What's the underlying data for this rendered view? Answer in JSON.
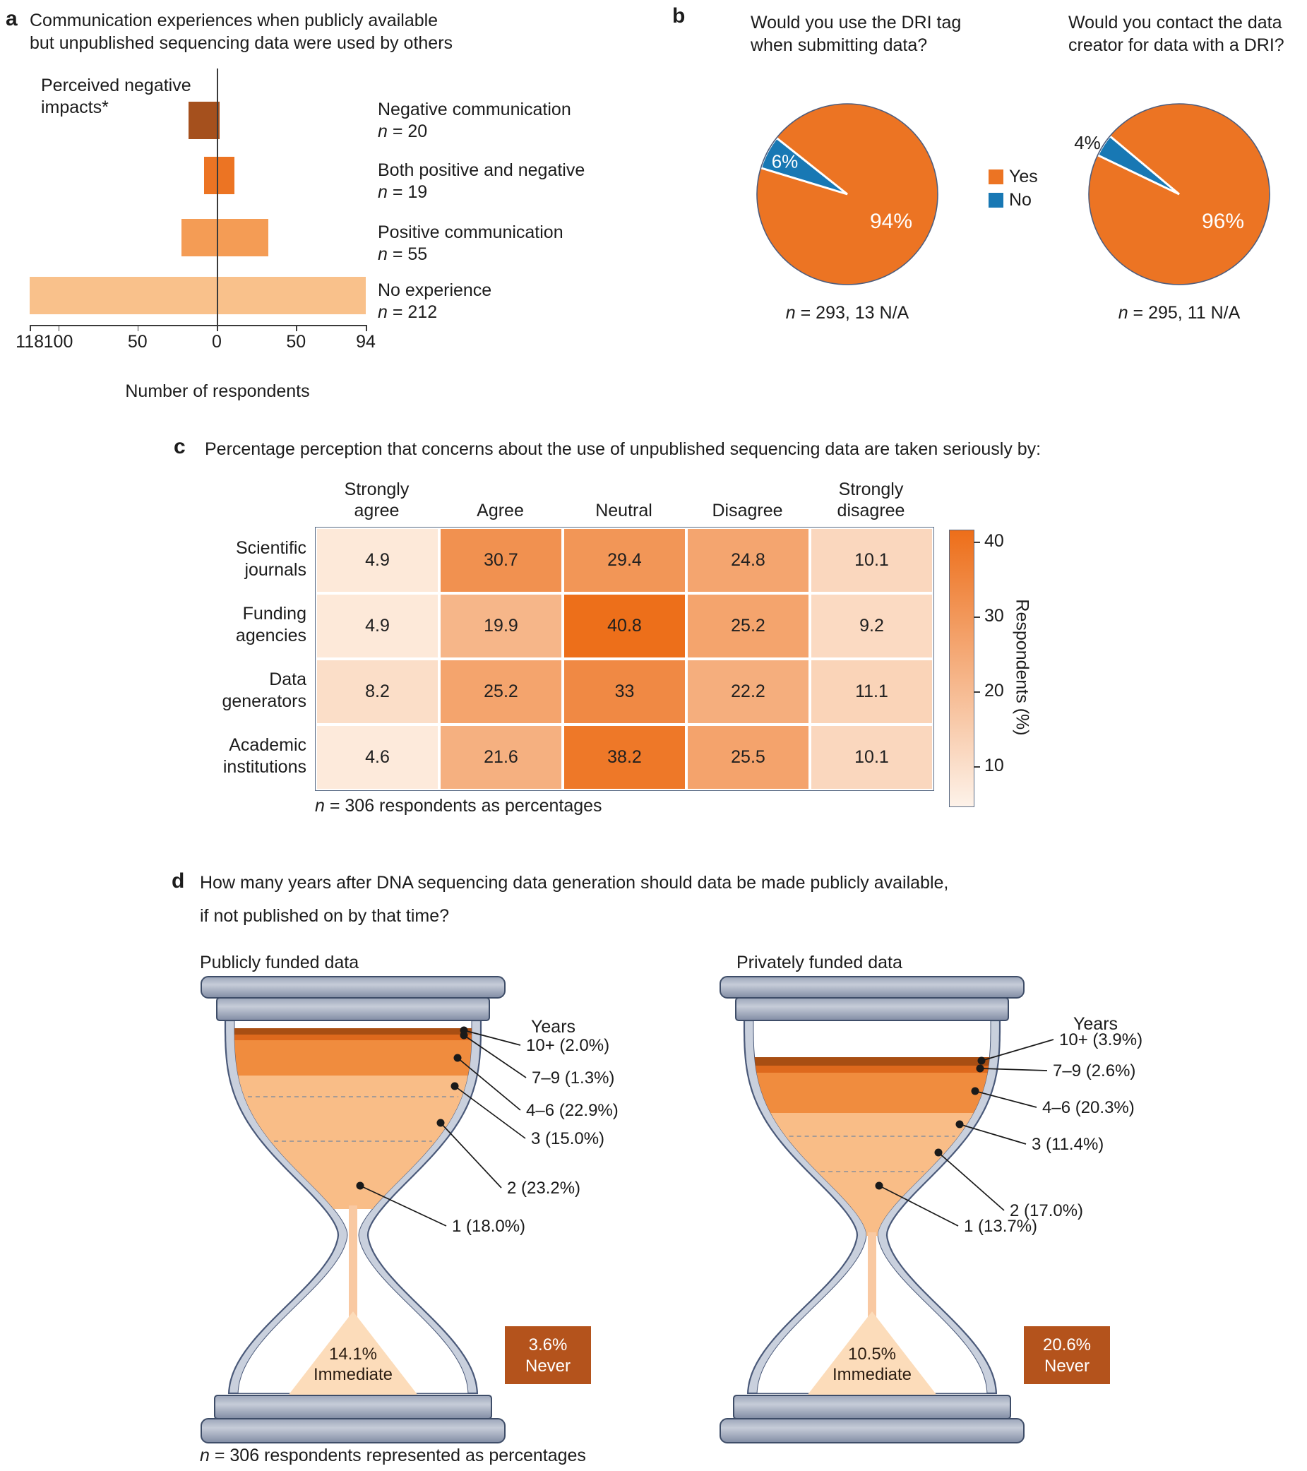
{
  "panels": {
    "a": {
      "letter": "a",
      "title_lines": [
        "Communication experiences when publicly available",
        "but unpublished sequencing data were used by others"
      ]
    },
    "b": {
      "letter": "b",
      "legend": [
        {
          "label": "Yes",
          "color": "#ec7423"
        },
        {
          "label": "No",
          "color": "#1878b4"
        }
      ]
    },
    "c": {
      "letter": "c"
    },
    "d": {
      "letter": "d",
      "title_lines": [
        "How many years after DNA sequencing data generation should data be made publicly available,",
        "if not published on by that time?"
      ],
      "footnote": "n = 306 respondents represented as percentages"
    }
  },
  "colors": {
    "orange": "#ec7423",
    "blue": "#1878b4",
    "dark_rust": "#a84e13",
    "never_box": "#b4531c",
    "glass_wall": "#c9d0dd",
    "glass_outline": "#4a5979",
    "heat_low": "#fdecde",
    "heat_high": "#ed6e19"
  },
  "chart_data": [
    {
      "id": "a",
      "type": "bar",
      "subtype": "diverging-horizontal",
      "title": "Communication experiences when publicly available but unpublished sequencing data were used by others",
      "axis_annotation": "Perceived negative impacts*",
      "xlabel": "Number of respondents",
      "axis_ticks": [
        {
          "label": "118",
          "value": -118
        },
        {
          "label": "100",
          "value": -100
        },
        {
          "label": "50",
          "value": -50
        },
        {
          "label": "0",
          "value": 0
        },
        {
          "label": "50",
          "value": 50
        },
        {
          "label": "94",
          "value": 94
        }
      ],
      "categories": [
        {
          "label": "Negative communication",
          "n_label": "n = 20",
          "n": 20,
          "extent": [
            -18,
            2
          ],
          "color": "#a5501d"
        },
        {
          "label": "Both positive and negative",
          "n_label": "n = 19",
          "n": 19,
          "extent": [
            -8,
            11
          ],
          "color": "#ec7423"
        },
        {
          "label": "Positive communication",
          "n_label": "n = 55",
          "n": 55,
          "extent": [
            -22.5,
            32.5
          ],
          "color": "#f49c55"
        },
        {
          "label": "No experience",
          "n_label": "n = 212",
          "n": 212,
          "extent": [
            -118,
            94
          ],
          "color": "#f9c18b"
        }
      ]
    },
    {
      "id": "b1",
      "type": "pie",
      "title": "Would you use the DRI tag when submitting data?",
      "slices": [
        {
          "label": "Yes",
          "value": 94,
          "text": "94%",
          "color": "#ec7423"
        },
        {
          "label": "No",
          "value": 6,
          "text": "6%",
          "color": "#1878b4"
        }
      ],
      "note": "n = 293, 13 N/A"
    },
    {
      "id": "b2",
      "type": "pie",
      "title": "Would you contact the data creator for data with a DRI?",
      "slices": [
        {
          "label": "Yes",
          "value": 96,
          "text": "96%",
          "color": "#ec7423"
        },
        {
          "label": "No",
          "value": 4,
          "text": "4%",
          "color": "#1878b4"
        }
      ],
      "note": "n = 295, 11 N/A"
    },
    {
      "id": "c",
      "type": "heatmap",
      "title": "Percentage perception that concerns about the use of unpublished sequencing data are taken seriously by:",
      "columns": [
        "Strongly agree",
        "Agree",
        "Neutral",
        "Disagree",
        "Strongly disagree"
      ],
      "rows": [
        "Scientific journals",
        "Funding agencies",
        "Data generators",
        "Academic institutions"
      ],
      "values": [
        [
          4.9,
          30.7,
          29.4,
          24.8,
          10.1
        ],
        [
          4.9,
          19.9,
          40.8,
          25.2,
          9.2
        ],
        [
          8.2,
          25.2,
          33,
          22.2,
          11.1
        ],
        [
          4.6,
          21.6,
          38.2,
          25.5,
          10.1
        ]
      ],
      "colorbar": {
        "ticks": [
          10,
          20,
          30,
          40
        ],
        "label": "Respondents (%)",
        "min": 4.7,
        "max": 41.6
      },
      "footnote": "n = 306 respondents as percentages"
    },
    {
      "id": "d1",
      "type": "hourglass",
      "title": "Publicly funded data",
      "unit_header": "Years",
      "layers": [
        {
          "years": "10+",
          "pct": "2.0"
        },
        {
          "years": "7–9",
          "pct": "1.3"
        },
        {
          "years": "4–6",
          "pct": "22.9"
        },
        {
          "years": "3",
          "pct": "15.0"
        },
        {
          "years": "2",
          "pct": "23.2"
        },
        {
          "years": "1",
          "pct": "18.0"
        }
      ],
      "immediate": {
        "pct": "14.1",
        "label": "Immediate"
      },
      "never": {
        "pct": "3.6",
        "label": "Never"
      }
    },
    {
      "id": "d2",
      "type": "hourglass",
      "title": "Privately funded data",
      "unit_header": "Years",
      "layers": [
        {
          "years": "10+",
          "pct": "3.9"
        },
        {
          "years": "7–9",
          "pct": "2.6"
        },
        {
          "years": "4–6",
          "pct": "20.3"
        },
        {
          "years": "3",
          "pct": "11.4"
        },
        {
          "years": "2",
          "pct": "17.0"
        },
        {
          "years": "1",
          "pct": "13.7"
        }
      ],
      "immediate": {
        "pct": "10.5",
        "label": "Immediate"
      },
      "never": {
        "pct": "20.6",
        "label": "Never"
      }
    }
  ]
}
